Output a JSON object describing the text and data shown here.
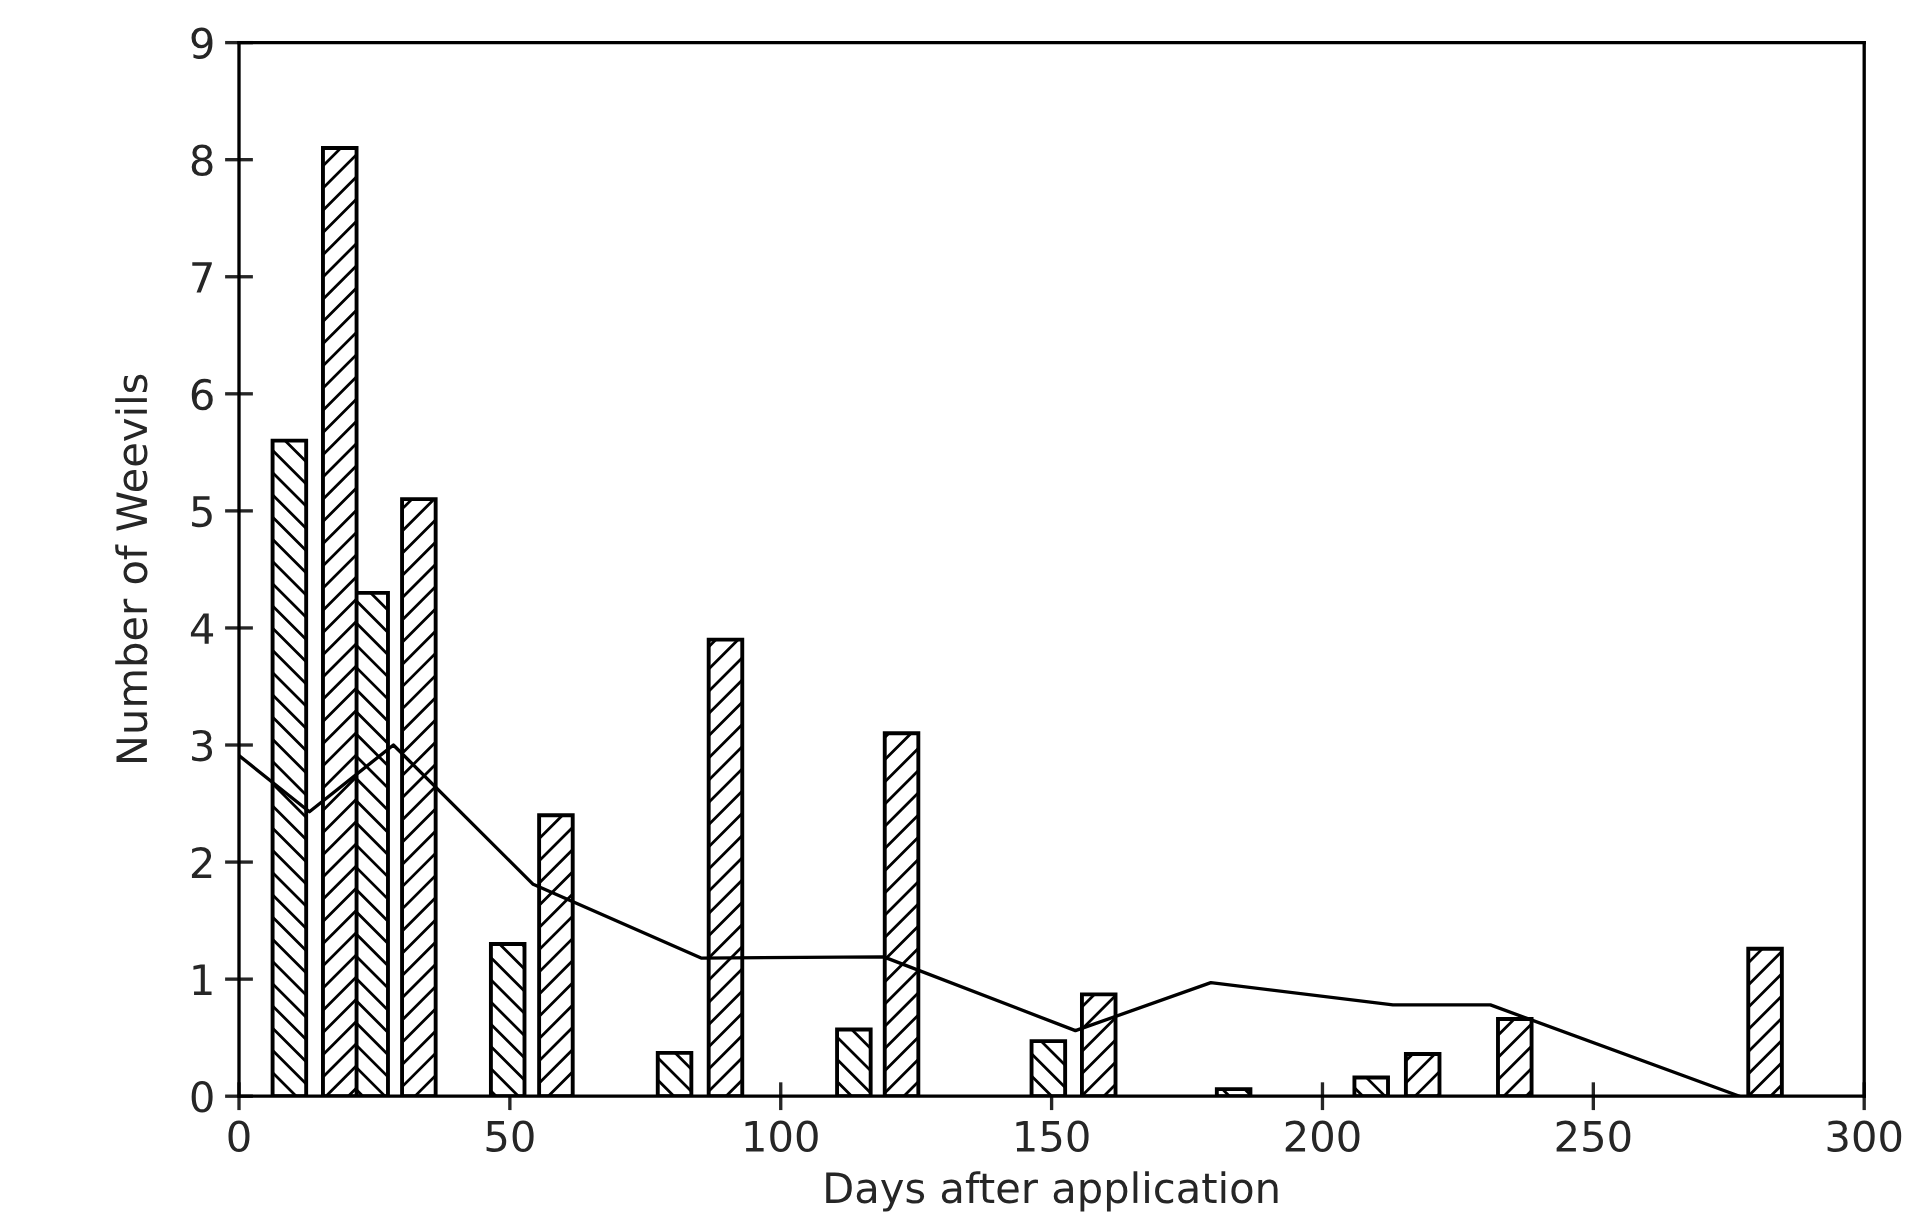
{
  "chart_data": {
    "type": "bar",
    "xlabel": "Days after application",
    "ylabel": "Number of Weevils",
    "xlim": [
      0,
      300
    ],
    "xticks": [
      0,
      50,
      100,
      150,
      200,
      250,
      300
    ],
    "ylim": [
      0,
      9
    ],
    "yticks": [
      0,
      1,
      2,
      3,
      4,
      5,
      6,
      7,
      8,
      9
    ],
    "grid": false,
    "series": [
      {
        "color": "#000000",
        "x": [
          9.3,
          24.4,
          49.6,
          80.4,
          113.5,
          149.4,
          183.6,
          209
        ],
        "values": [
          5.6,
          4.3,
          1.3,
          0.37,
          0.57,
          0.47,
          0.06,
          0.16
        ]
      },
      {
        "color": "#000000",
        "x": [
          18.6,
          33.2,
          58.5,
          89.8,
          122.3,
          158.7,
          218.5,
          235.5,
          281.7
        ],
        "values": [
          8.1,
          5.1,
          2.4,
          3.9,
          3.1,
          0.87,
          0.36,
          0.66,
          1.26
        ]
      },
      {
        "type": "line",
        "color": "#000000",
        "x": [
          0,
          13,
          28.5,
          54.3,
          85.3,
          119,
          154.4,
          179.4,
          213,
          231,
          277
        ],
        "values": [
          2.91,
          2.43,
          3.0,
          1.81,
          1.18,
          1.19,
          0.56,
          0.97,
          0.78,
          0.78,
          0.0
        ]
      }
    ]
  }
}
